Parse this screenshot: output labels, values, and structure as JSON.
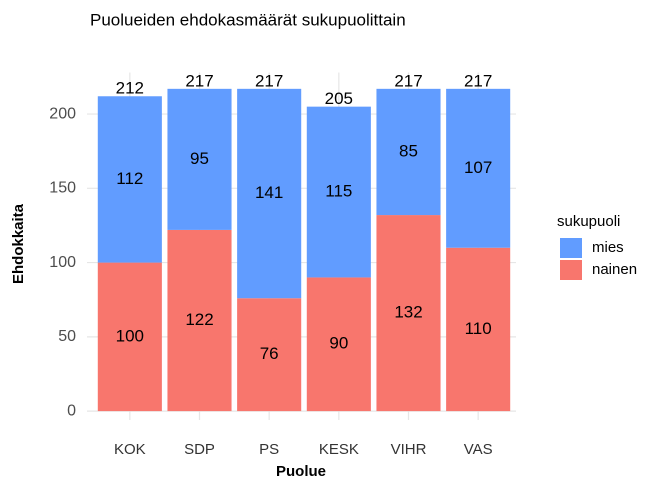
{
  "chart_data": {
    "type": "stacked_bar",
    "title": "Puolueiden ehdokasmäärät sukupuolittain",
    "x_label": "Puolue",
    "y_label": "Ehdokkaita",
    "legend_title": "sukupuoli",
    "categories": [
      "KOK",
      "SDP",
      "PS",
      "KESK",
      "VIHR",
      "VAS"
    ],
    "series": [
      {
        "name": "mies",
        "color": "#619CFF",
        "values": [
          112,
          95,
          141,
          115,
          85,
          107
        ]
      },
      {
        "name": "nainen",
        "color": "#F8766D",
        "values": [
          100,
          122,
          76,
          90,
          132,
          110
        ]
      }
    ],
    "totals": [
      212,
      217,
      217,
      205,
      217,
      217
    ],
    "ylim": [
      -6,
      228
    ],
    "yticks": [
      0,
      50,
      100,
      150,
      200
    ],
    "grid": true,
    "legend": "right"
  }
}
